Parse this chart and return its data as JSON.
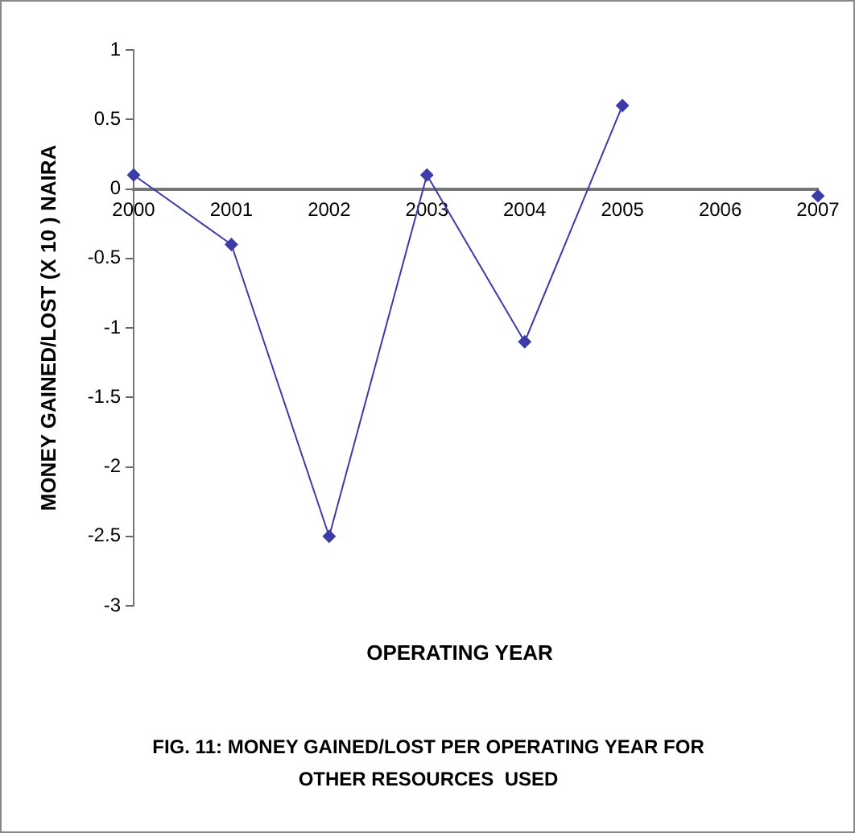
{
  "chart_data": {
    "type": "line",
    "ylabel": "MONEY GAINED/LOST (X 10 ) NAIRA",
    "xlabel": "OPERATING YEAR",
    "annotations": [
      "FIG. 11: MONEY GAINED/LOST PER OPERATING YEAR FOR\nOTHER RESOURCES  USED"
    ],
    "categories": [
      "2000",
      "2001",
      "2002",
      "2003",
      "2004",
      "2005",
      "2006",
      "2007"
    ],
    "series": [
      {
        "color": "#3c3ca8",
        "values": [
          0.1,
          -0.4,
          -2.5,
          0.1,
          -1.1,
          0.6,
          null,
          -0.05
        ]
      }
    ],
    "ylim": [
      -3,
      1
    ],
    "yticks": [
      1,
      0.5,
      0,
      -0.5,
      -1,
      -1.5,
      -2,
      -2.5,
      -3
    ],
    "grid": false,
    "legend": false,
    "marker": "diamond",
    "line_style": "solid"
  }
}
